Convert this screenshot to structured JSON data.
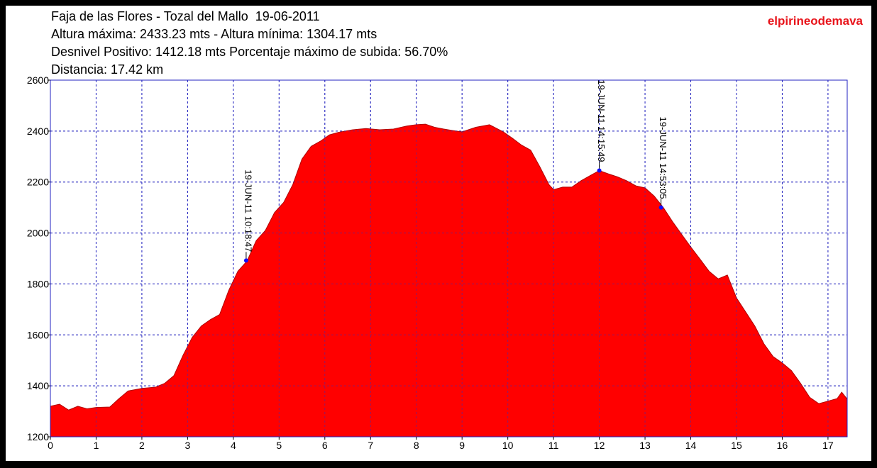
{
  "chart_data": {
    "type": "area",
    "title_lines": [
      "Faja de las Flores - Tozal del Mallo  19-06-2011",
      "Altura máxima: 2433.23 mts - Altura mínima: 1304.17 mts",
      "Desnivel Positivo: 1412.18 mts Porcentaje máximo de subida: 56.70%",
      "Distancia: 17.42 km"
    ],
    "watermark": "elpirineodemava",
    "color": "#ff0000",
    "x": [
      0,
      0.2,
      0.4,
      0.6,
      0.8,
      1.0,
      1.3,
      1.5,
      1.7,
      2.0,
      2.3,
      2.5,
      2.7,
      2.9,
      3.1,
      3.3,
      3.5,
      3.7,
      3.9,
      4.1,
      4.3,
      4.5,
      4.7,
      4.9,
      5.1,
      5.3,
      5.5,
      5.7,
      5.9,
      6.1,
      6.3,
      6.6,
      6.9,
      7.2,
      7.5,
      7.8,
      8.0,
      8.2,
      8.4,
      8.6,
      8.8,
      9.0,
      9.3,
      9.6,
      9.9,
      10.1,
      10.3,
      10.5,
      10.7,
      10.9,
      11.0,
      11.2,
      11.4,
      11.6,
      11.8,
      12.0,
      12.2,
      12.4,
      12.6,
      12.8,
      13.0,
      13.2,
      13.4,
      13.6,
      13.8,
      14.0,
      14.2,
      14.4,
      14.6,
      14.8,
      15.0,
      15.2,
      15.4,
      15.6,
      15.8,
      16.0,
      16.2,
      16.4,
      16.6,
      16.8,
      17.0,
      17.2,
      17.3,
      17.42
    ],
    "values": [
      1320,
      1328,
      1305,
      1320,
      1310,
      1315,
      1317,
      1350,
      1380,
      1390,
      1395,
      1410,
      1440,
      1520,
      1590,
      1635,
      1660,
      1680,
      1775,
      1850,
      1890,
      1970,
      2010,
      2080,
      2120,
      2190,
      2290,
      2340,
      2360,
      2385,
      2395,
      2405,
      2410,
      2405,
      2408,
      2420,
      2425,
      2427,
      2415,
      2408,
      2402,
      2397,
      2415,
      2425,
      2397,
      2372,
      2345,
      2325,
      2260,
      2190,
      2170,
      2180,
      2180,
      2205,
      2225,
      2245,
      2232,
      2220,
      2205,
      2185,
      2177,
      2145,
      2100,
      2045,
      1995,
      1945,
      1898,
      1850,
      1820,
      1835,
      1745,
      1690,
      1635,
      1565,
      1515,
      1490,
      1460,
      1410,
      1355,
      1330,
      1340,
      1350,
      1375,
      1348
    ],
    "annotations": [
      {
        "x": 4.28,
        "y": 1892,
        "label": "19-JUN-11 10:18:47"
      },
      {
        "x": 12.0,
        "y": 2245,
        "label": "19-JUN-11 14:15:49"
      },
      {
        "x": 13.35,
        "y": 2100,
        "label": "19-JUN-11 14:53:05"
      }
    ],
    "xlim": [
      0,
      17.42
    ],
    "xticks": [
      0,
      1,
      2,
      3,
      4,
      5,
      6,
      7,
      8,
      9,
      10,
      11,
      12,
      13,
      14,
      15,
      16,
      17
    ],
    "ylim": [
      1200,
      2600
    ],
    "yticks": [
      1200,
      1400,
      1600,
      1800,
      2000,
      2200,
      2400,
      2600
    ],
    "grid": true
  }
}
